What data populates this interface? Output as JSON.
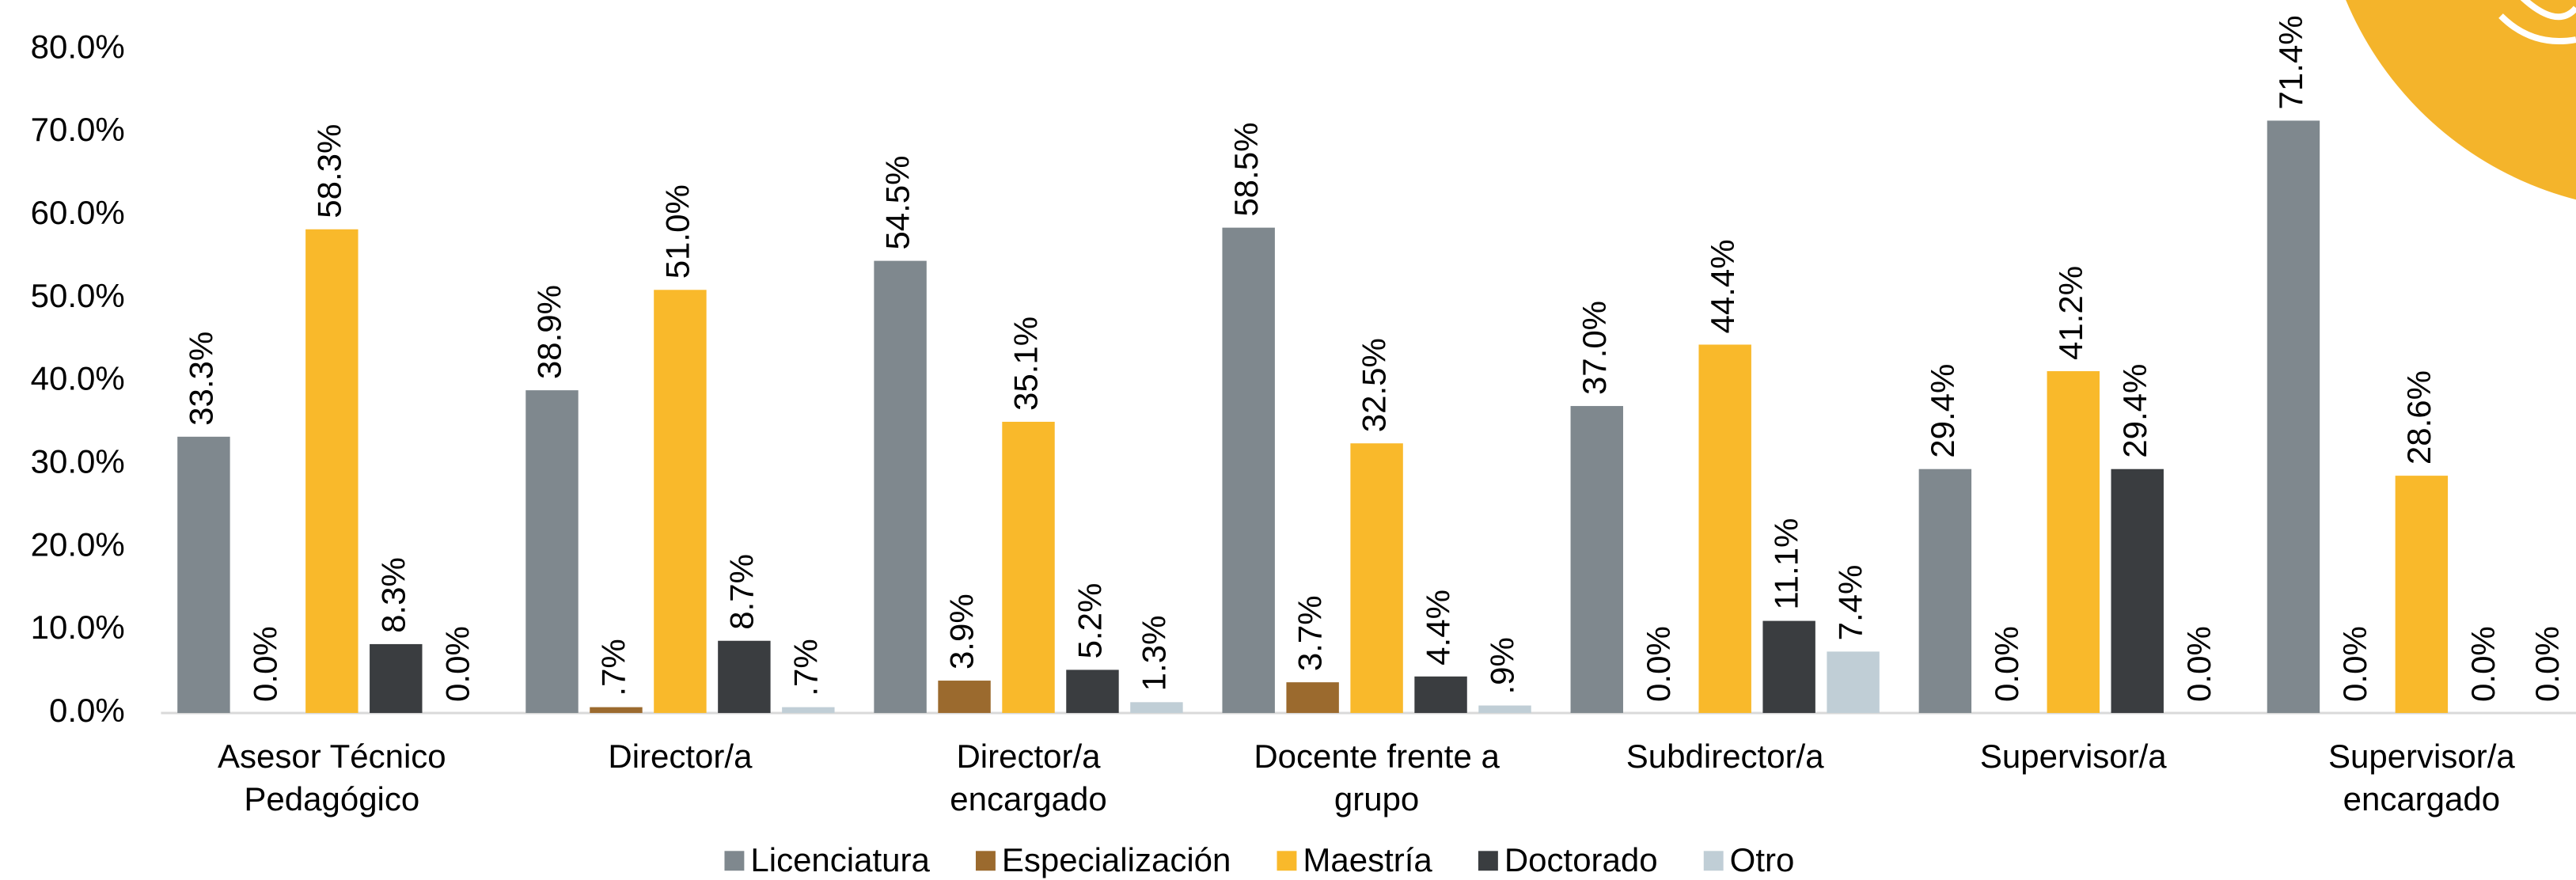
{
  "chart_data": {
    "type": "bar",
    "categories": [
      "Asesor Técnico Pedagógico",
      "Director/a",
      "Director/a encargado",
      "Docente frente a grupo",
      "Subdirector/a",
      "Supervisor/a",
      "Supervisor/a encargado"
    ],
    "series": [
      {
        "name": "Licenciatura",
        "color": "#7f888e",
        "values": [
          33.3,
          38.9,
          54.5,
          58.5,
          37.0,
          29.4,
          71.4
        ],
        "value_labels": [
          "33.3%",
          "38.9%",
          "54.5%",
          "58.5%",
          "37.0%",
          "29.4%",
          "71.4%"
        ]
      },
      {
        "name": "Especialización",
        "color": "#9b6a2e",
        "values": [
          0.0,
          0.7,
          3.9,
          3.7,
          0.0,
          0.0,
          0.0
        ],
        "value_labels": [
          "0.0%",
          ".7%",
          "3.9%",
          "3.7%",
          "0.0%",
          "0.0%",
          "0.0%"
        ]
      },
      {
        "name": "Maestría",
        "color": "#f9b92b",
        "values": [
          58.3,
          51.0,
          35.1,
          32.5,
          44.4,
          41.2,
          28.6
        ],
        "value_labels": [
          "58.3%",
          "51.0%",
          "35.1%",
          "32.5%",
          "44.4%",
          "41.2%",
          "28.6%"
        ]
      },
      {
        "name": "Doctorado",
        "color": "#3a3d40",
        "values": [
          8.3,
          8.7,
          5.2,
          4.4,
          11.1,
          29.4,
          0.0
        ],
        "value_labels": [
          "8.3%",
          "8.7%",
          "5.2%",
          "4.4%",
          "11.1%",
          "29.4%",
          "0.0%"
        ]
      },
      {
        "name": "Otro",
        "color": "#c0ced6",
        "values": [
          0.0,
          0.7,
          1.3,
          0.9,
          7.4,
          0.0,
          0.0
        ],
        "value_labels": [
          "0.0%",
          ".7%",
          "1.3%",
          ".9%",
          "7.4%",
          "0.0%",
          "0.0%"
        ]
      }
    ],
    "ylim": [
      0,
      80
    ],
    "yticks": [
      {
        "value": 0,
        "label": "0.0%"
      },
      {
        "value": 10,
        "label": "10.0%"
      },
      {
        "value": 20,
        "label": "20.0%"
      },
      {
        "value": 30,
        "label": "30.0%"
      },
      {
        "value": 40,
        "label": "40.0%"
      },
      {
        "value": 50,
        "label": "50.0%"
      },
      {
        "value": 60,
        "label": "60.0%"
      },
      {
        "value": 70,
        "label": "70.0%"
      },
      {
        "value": 80,
        "label": "80.0%"
      }
    ],
    "grid": false,
    "legend": "bottom"
  }
}
